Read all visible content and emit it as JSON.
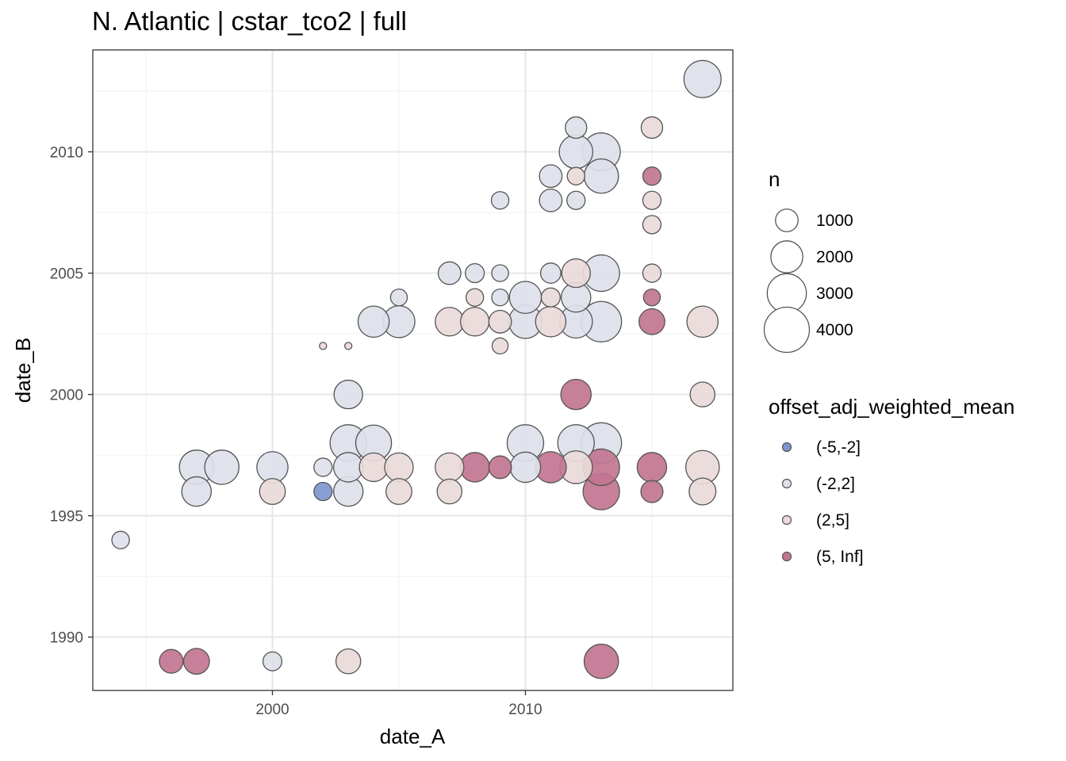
{
  "chart_data": {
    "type": "scatter",
    "title": "N. Atlantic | cstar_tco2 | full",
    "xlabel": "date_A",
    "ylabel": "date_B",
    "xlim": [
      1992.9,
      2018.2
    ],
    "ylim": [
      1987.8,
      2014.2
    ],
    "x_ticks": [
      2000,
      2010
    ],
    "y_ticks": [
      1990,
      1995,
      2000,
      2005,
      2010
    ],
    "grid": true,
    "size_legend": {
      "title": "n",
      "values": [
        1000,
        2000,
        3000,
        4000
      ]
    },
    "color_legend": {
      "title": "offset_adj_weighted_mean",
      "categories": [
        {
          "label": "(-5,-2]",
          "color": "#7d96cf"
        },
        {
          "label": "(-2,2]",
          "color": "#dde0ea"
        },
        {
          "label": "(2,5]",
          "color": "#eadada"
        },
        {
          "label": "(5, Inf]",
          "color": "#c17590"
        }
      ]
    },
    "points": [
      {
        "x": 1994,
        "y": 1994,
        "n": 600,
        "group": "(-2,2]"
      },
      {
        "x": 1996,
        "y": 1989,
        "n": 1100,
        "group": "(5, Inf]"
      },
      {
        "x": 1997,
        "y": 1989,
        "n": 1300,
        "group": "(5, Inf]"
      },
      {
        "x": 2000,
        "y": 1989,
        "n": 700,
        "group": "(-2,2]"
      },
      {
        "x": 2003,
        "y": 1989,
        "n": 1200,
        "group": "(2,5]"
      },
      {
        "x": 2013,
        "y": 1989,
        "n": 2300,
        "group": "(5, Inf]"
      },
      {
        "x": 1997,
        "y": 1996,
        "n": 1700,
        "group": "(-2,2]"
      },
      {
        "x": 2000,
        "y": 1996,
        "n": 1300,
        "group": "(2,5]"
      },
      {
        "x": 2002,
        "y": 1996,
        "n": 650,
        "group": "(-5,-2]"
      },
      {
        "x": 2003,
        "y": 1996,
        "n": 1700,
        "group": "(-2,2]"
      },
      {
        "x": 2005,
        "y": 1996,
        "n": 1300,
        "group": "(2,5]"
      },
      {
        "x": 2007,
        "y": 1996,
        "n": 1200,
        "group": "(2,5]"
      },
      {
        "x": 2013,
        "y": 1996,
        "n": 2600,
        "group": "(5, Inf]"
      },
      {
        "x": 2015,
        "y": 1996,
        "n": 950,
        "group": "(5, Inf]"
      },
      {
        "x": 2017,
        "y": 1996,
        "n": 1400,
        "group": "(2,5]"
      },
      {
        "x": 1997,
        "y": 1997,
        "n": 2300,
        "group": "(-2,2]"
      },
      {
        "x": 1998,
        "y": 1997,
        "n": 2300,
        "group": "(-2,2]"
      },
      {
        "x": 2000,
        "y": 1997,
        "n": 1900,
        "group": "(-2,2]"
      },
      {
        "x": 2002,
        "y": 1997,
        "n": 650,
        "group": "(-2,2]"
      },
      {
        "x": 2003,
        "y": 1997,
        "n": 1700,
        "group": "(-2,2]"
      },
      {
        "x": 2004,
        "y": 1997,
        "n": 1600,
        "group": "(2,5]"
      },
      {
        "x": 2005,
        "y": 1997,
        "n": 1600,
        "group": "(2,5]"
      },
      {
        "x": 2007,
        "y": 1997,
        "n": 1600,
        "group": "(2,5]"
      },
      {
        "x": 2008,
        "y": 1997,
        "n": 1700,
        "group": "(5, Inf]"
      },
      {
        "x": 2009,
        "y": 1997,
        "n": 1000,
        "group": "(5, Inf]"
      },
      {
        "x": 2010,
        "y": 1997,
        "n": 1800,
        "group": "(-2,2]"
      },
      {
        "x": 2011,
        "y": 1997,
        "n": 1900,
        "group": "(5, Inf]"
      },
      {
        "x": 2012,
        "y": 1997,
        "n": 2100,
        "group": "(2,5]"
      },
      {
        "x": 2013,
        "y": 1997,
        "n": 2600,
        "group": "(5, Inf]"
      },
      {
        "x": 2015,
        "y": 1997,
        "n": 1700,
        "group": "(5, Inf]"
      },
      {
        "x": 2017,
        "y": 1997,
        "n": 2200,
        "group": "(2,5]"
      },
      {
        "x": 2003,
        "y": 1998,
        "n": 2600,
        "group": "(-2,2]"
      },
      {
        "x": 2004,
        "y": 1998,
        "n": 2500,
        "group": "(-2,2]"
      },
      {
        "x": 2010,
        "y": 1998,
        "n": 2600,
        "group": "(-2,2]"
      },
      {
        "x": 2012,
        "y": 1998,
        "n": 2600,
        "group": "(-2,2]"
      },
      {
        "x": 2013,
        "y": 1998,
        "n": 3200,
        "group": "(-2,2]"
      },
      {
        "x": 2003,
        "y": 2000,
        "n": 1600,
        "group": "(-2,2]"
      },
      {
        "x": 2012,
        "y": 2000,
        "n": 1800,
        "group": "(5, Inf]"
      },
      {
        "x": 2017,
        "y": 2000,
        "n": 1200,
        "group": "(2,5]"
      },
      {
        "x": 2002,
        "y": 2002,
        "n": 100,
        "group": "(2,5]"
      },
      {
        "x": 2003,
        "y": 2002,
        "n": 100,
        "group": "(2,5]"
      },
      {
        "x": 2009,
        "y": 2002,
        "n": 500,
        "group": "(2,5]"
      },
      {
        "x": 2004,
        "y": 2003,
        "n": 1900,
        "group": "(-2,2]"
      },
      {
        "x": 2005,
        "y": 2003,
        "n": 2000,
        "group": "(-2,2]"
      },
      {
        "x": 2007,
        "y": 2003,
        "n": 1600,
        "group": "(2,5]"
      },
      {
        "x": 2008,
        "y": 2003,
        "n": 1600,
        "group": "(2,5]"
      },
      {
        "x": 2009,
        "y": 2003,
        "n": 1000,
        "group": "(2,5]"
      },
      {
        "x": 2010,
        "y": 2003,
        "n": 2200,
        "group": "(-2,2]"
      },
      {
        "x": 2011,
        "y": 2003,
        "n": 1800,
        "group": "(2,5]"
      },
      {
        "x": 2012,
        "y": 2003,
        "n": 2100,
        "group": "(-2,2]"
      },
      {
        "x": 2013,
        "y": 2003,
        "n": 3200,
        "group": "(-2,2]"
      },
      {
        "x": 2015,
        "y": 2003,
        "n": 1300,
        "group": "(5, Inf]"
      },
      {
        "x": 2017,
        "y": 2003,
        "n": 1900,
        "group": "(2,5]"
      },
      {
        "x": 2005,
        "y": 2004,
        "n": 550,
        "group": "(-2,2]"
      },
      {
        "x": 2008,
        "y": 2004,
        "n": 600,
        "group": "(2,5]"
      },
      {
        "x": 2009,
        "y": 2004,
        "n": 550,
        "group": "(-2,2]"
      },
      {
        "x": 2010,
        "y": 2004,
        "n": 2000,
        "group": "(-2,2]"
      },
      {
        "x": 2011,
        "y": 2004,
        "n": 700,
        "group": "(2,5]"
      },
      {
        "x": 2012,
        "y": 2004,
        "n": 1700,
        "group": "(-2,2]"
      },
      {
        "x": 2015,
        "y": 2004,
        "n": 550,
        "group": "(5, Inf]"
      },
      {
        "x": 2007,
        "y": 2005,
        "n": 1000,
        "group": "(-2,2]"
      },
      {
        "x": 2008,
        "y": 2005,
        "n": 700,
        "group": "(-2,2]"
      },
      {
        "x": 2009,
        "y": 2005,
        "n": 550,
        "group": "(-2,2]"
      },
      {
        "x": 2011,
        "y": 2005,
        "n": 800,
        "group": "(-2,2]"
      },
      {
        "x": 2012,
        "y": 2005,
        "n": 1600,
        "group": "(2,5]"
      },
      {
        "x": 2013,
        "y": 2005,
        "n": 2600,
        "group": "(-2,2]"
      },
      {
        "x": 2015,
        "y": 2005,
        "n": 650,
        "group": "(2,5]"
      },
      {
        "x": 2015,
        "y": 2007,
        "n": 650,
        "group": "(2,5]"
      },
      {
        "x": 2009,
        "y": 2008,
        "n": 600,
        "group": "(-2,2]"
      },
      {
        "x": 2011,
        "y": 2008,
        "n": 1000,
        "group": "(-2,2]"
      },
      {
        "x": 2012,
        "y": 2008,
        "n": 650,
        "group": "(-2,2]"
      },
      {
        "x": 2015,
        "y": 2008,
        "n": 650,
        "group": "(2,5]"
      },
      {
        "x": 2011,
        "y": 2009,
        "n": 1000,
        "group": "(-2,2]"
      },
      {
        "x": 2012,
        "y": 2009,
        "n": 600,
        "group": "(2,5]"
      },
      {
        "x": 2013,
        "y": 2009,
        "n": 2300,
        "group": "(-2,2]"
      },
      {
        "x": 2015,
        "y": 2009,
        "n": 650,
        "group": "(5, Inf]"
      },
      {
        "x": 2012,
        "y": 2010,
        "n": 2200,
        "group": "(-2,2]"
      },
      {
        "x": 2013,
        "y": 2010,
        "n": 2800,
        "group": "(-2,2]"
      },
      {
        "x": 2012,
        "y": 2011,
        "n": 900,
        "group": "(-2,2]"
      },
      {
        "x": 2015,
        "y": 2011,
        "n": 900,
        "group": "(2,5]"
      },
      {
        "x": 2017,
        "y": 2013,
        "n": 2700,
        "group": "(-2,2]"
      }
    ]
  }
}
